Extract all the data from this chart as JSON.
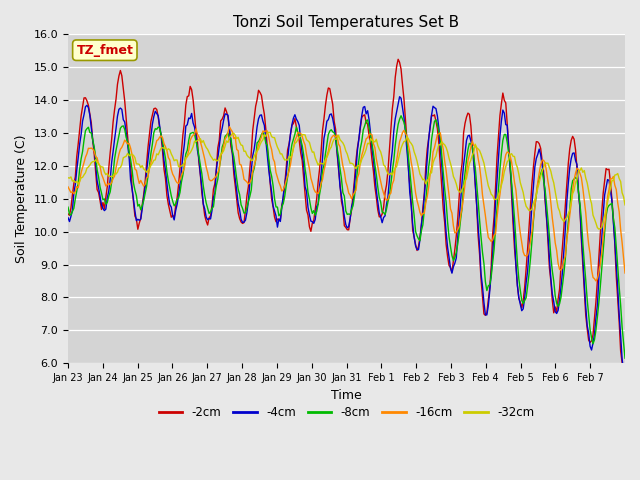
{
  "title": "Tonzi Soil Temperatures Set B",
  "xlabel": "Time",
  "ylabel": "Soil Temperature (C)",
  "ylim": [
    6.0,
    16.0
  ],
  "yticks": [
    6.0,
    7.0,
    8.0,
    9.0,
    10.0,
    11.0,
    12.0,
    13.0,
    14.0,
    15.0,
    16.0
  ],
  "xtick_labels": [
    "Jan 23",
    "Jan 24",
    "Jan 25",
    "Jan 26",
    "Jan 27",
    "Jan 28",
    "Jan 29",
    "Jan 30",
    "Jan 31",
    "Feb 1",
    "Feb 2",
    "Feb 3",
    "Feb 4",
    "Feb 5",
    "Feb 6",
    "Feb 7"
  ],
  "series_labels": [
    "-2cm",
    "-4cm",
    "-8cm",
    "-16cm",
    "-32cm"
  ],
  "series_colors": [
    "#cc0000",
    "#0000cc",
    "#00bb00",
    "#ff8800",
    "#cccc00"
  ],
  "annotation_label": "TZ_fmet",
  "fig_bg_color": "#e8e8e8",
  "plot_bg_color": "#d4d4d4"
}
